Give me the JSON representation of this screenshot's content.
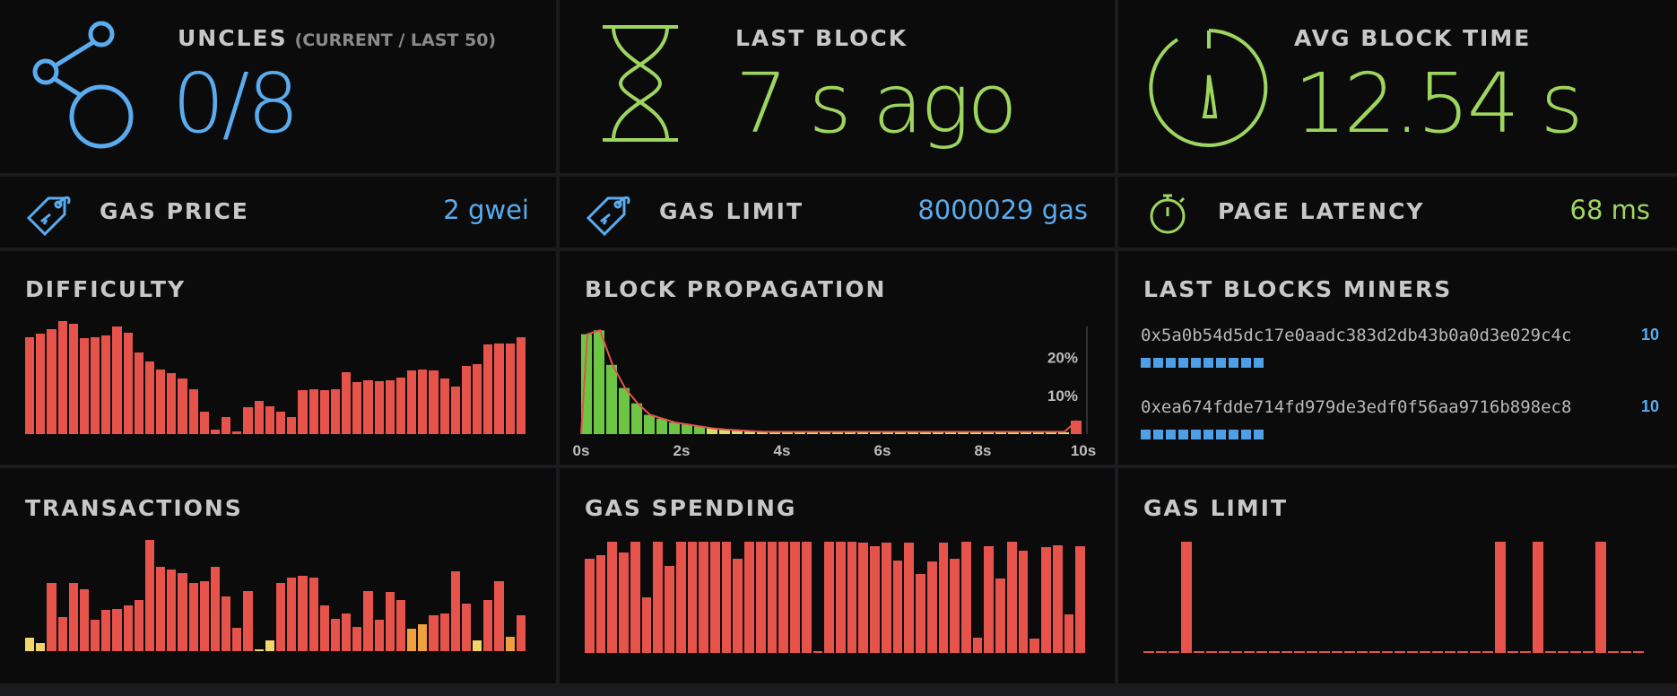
{
  "uncles": {
    "label": "UNCLES",
    "sub": "(CURRENT / LAST 50)",
    "value": "0/8",
    "icon": "uncles-icon"
  },
  "last_block": {
    "label": "LAST BLOCK",
    "value": "7 s ago",
    "icon": "hourglass-icon"
  },
  "avg_block_time": {
    "label": "AVG BLOCK TIME",
    "value": "12.54 s",
    "icon": "gauge-icon"
  },
  "gas_price": {
    "label": "GAS PRICE",
    "value": "2 gwei",
    "icon": "price-tag-icon"
  },
  "gas_limit_stat": {
    "label": "GAS LIMIT",
    "value": "8000029 gas",
    "icon": "price-tag-icon"
  },
  "page_latency": {
    "label": "PAGE LATENCY",
    "value": "68 ms",
    "icon": "stopwatch-icon"
  },
  "difficulty": {
    "label": "DIFFICULTY"
  },
  "block_propagation": {
    "label": "BLOCK PROPAGATION"
  },
  "last_blocks_miners": {
    "label": "LAST BLOCKS MINERS",
    "miners": [
      {
        "address": "0x5a0b54d5dc17e0aadc383d2db43b0a0d3e029c4c",
        "count": "10",
        "blocks": 10
      },
      {
        "address": "0xea674fdde714fd979de3edf0f56aa9716b898ec8",
        "count": "10",
        "blocks": 10
      }
    ]
  },
  "transactions": {
    "label": "TRANSACTIONS"
  },
  "gas_spending": {
    "label": "GAS SPENDING"
  },
  "gas_limit_chart": {
    "label": "GAS LIMIT"
  },
  "colors": {
    "blue": "#5aacef",
    "green": "#9ed55f",
    "red": "#e5534b",
    "yellow": "#f2d56b",
    "orange": "#f0a03c",
    "prop_green": "#6cc644",
    "prop_yellow": "#d8dc6a"
  },
  "chart_data": [
    {
      "type": "bar",
      "name_ref": "difficulty",
      "values": [
        0.86,
        0.89,
        0.93,
        1.0,
        0.98,
        0.85,
        0.86,
        0.87,
        0.95,
        0.9,
        0.72,
        0.64,
        0.57,
        0.54,
        0.49,
        0.4,
        0.2,
        0.04,
        0.15,
        0.02,
        0.24,
        0.29,
        0.25,
        0.2,
        0.15,
        0.39,
        0.4,
        0.39,
        0.4,
        0.55,
        0.46,
        0.48,
        0.47,
        0.48,
        0.5,
        0.56,
        0.57,
        0.56,
        0.49,
        0.42,
        0.6,
        0.62,
        0.79,
        0.8,
        0.8,
        0.86
      ],
      "ylim": [
        0,
        1
      ]
    },
    {
      "type": "bar",
      "name_ref": "block_propagation",
      "x": [
        0.25,
        0.5,
        0.75,
        1.0,
        1.25,
        1.5,
        1.75,
        2.0,
        2.25,
        2.5,
        2.75,
        3.0,
        3.25,
        3.5,
        3.75,
        4.0,
        4.25,
        4.5,
        4.75,
        5.0,
        5.25,
        5.5,
        5.75,
        6.0,
        6.25,
        6.5,
        6.75,
        7.0,
        7.25,
        7.5,
        7.75,
        8.0,
        8.25,
        8.5,
        8.75,
        9.0,
        9.25,
        9.5,
        9.75,
        10.0
      ],
      "values": [
        26,
        27,
        18,
        12,
        8,
        5,
        4,
        3,
        2.5,
        2,
        1.5,
        1.2,
        1,
        0.8,
        0.6,
        0.5,
        0.4,
        0.4,
        0.4,
        0.4,
        0.4,
        0.4,
        0.4,
        0.4,
        0.4,
        0.4,
        0.4,
        0.4,
        0.4,
        0.4,
        0.4,
        0.4,
        0.4,
        0.4,
        0.4,
        0.4,
        0.4,
        0.4,
        0.4,
        3.5
      ],
      "xticks": [
        "0s",
        "2s",
        "4s",
        "6s",
        "8s",
        "10s"
      ],
      "yticks": [
        "10%",
        "20%"
      ],
      "xlim": [
        0,
        10
      ],
      "ylim": [
        0,
        28
      ]
    },
    {
      "type": "bar",
      "name_ref": "transactions",
      "values": [
        0.12,
        0.07,
        0.61,
        0.31,
        0.61,
        0.56,
        0.28,
        0.37,
        0.38,
        0.41,
        0.46,
        1.0,
        0.76,
        0.73,
        0.7,
        0.61,
        0.63,
        0.76,
        0.49,
        0.21,
        0.54,
        0.01,
        0.1,
        0.61,
        0.66,
        0.68,
        0.66,
        0.41,
        0.29,
        0.34,
        0.22,
        0.54,
        0.28,
        0.53,
        0.46,
        0.2,
        0.24,
        0.32,
        0.34,
        0.72,
        0.43,
        0.1,
        0.46,
        0.63,
        0.13,
        0.32
      ],
      "colors": [
        "yellow",
        "yellow",
        "red",
        "red",
        "red",
        "red",
        "red",
        "red",
        "red",
        "red",
        "red",
        "red",
        "red",
        "red",
        "red",
        "red",
        "red",
        "red",
        "red",
        "red",
        "red",
        "yellow",
        "yellow",
        "red",
        "red",
        "red",
        "red",
        "red",
        "red",
        "red",
        "red",
        "red",
        "red",
        "red",
        "red",
        "orange",
        "orange",
        "red",
        "red",
        "red",
        "red",
        "yellow",
        "red",
        "red",
        "orange",
        "red"
      ],
      "ylim": [
        0,
        1
      ]
    },
    {
      "type": "bar",
      "name_ref": "gas_spending",
      "values": [
        0.85,
        0.88,
        1.0,
        0.9,
        1.0,
        0.5,
        1.0,
        0.78,
        1.0,
        1.0,
        1.0,
        1.0,
        1.0,
        0.85,
        1.0,
        1.0,
        1.0,
        1.0,
        1.0,
        1.0,
        0.02,
        1.0,
        1.0,
        1.0,
        0.99,
        0.96,
        0.99,
        0.83,
        0.99,
        0.71,
        0.82,
        0.99,
        0.85,
        1.0,
        0.14,
        0.96,
        0.67,
        1.0,
        0.92,
        0.13,
        0.95,
        0.97,
        0.35,
        0.96
      ],
      "ylim": [
        0,
        1
      ]
    },
    {
      "type": "bar",
      "name_ref": "gas_limit_chart",
      "values": [
        0.02,
        0.02,
        0.02,
        1.0,
        0.02,
        0.02,
        0.02,
        0.02,
        0.02,
        0.02,
        0.02,
        0.02,
        0.02,
        0.02,
        0.02,
        0.02,
        0.02,
        0.02,
        0.02,
        0.02,
        0.02,
        0.02,
        0.02,
        0.02,
        0.02,
        0.02,
        0.02,
        0.02,
        1.0,
        0.02,
        0.02,
        1.0,
        0.02,
        0.02,
        0.02,
        0.02,
        1.0,
        0.02,
        0.02,
        0.02
      ],
      "ylim": [
        0,
        1
      ]
    }
  ]
}
